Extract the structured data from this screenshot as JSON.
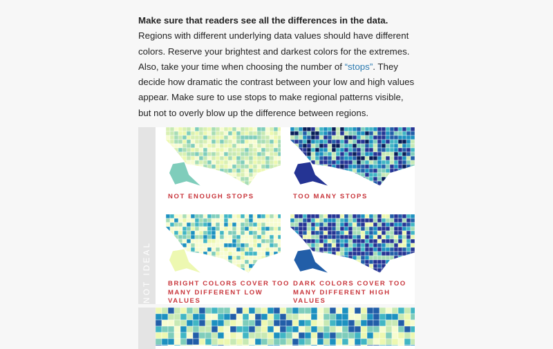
{
  "article": {
    "paragraph": {
      "bold": "Make sure that readers see all the differences in the data.",
      "text_before_link": " Regions with different underlying data values should have different colors. Reserve your brightest and darkest colors for the extremes. Also, take your time when choosing the number of ",
      "link": "“stops”",
      "text_after_link": ". They decide how dramatic the contrast between your low and high values appear. Make sure to use stops to make regional patterns visible, but not to overly blow up the difference between regions."
    },
    "figure": {
      "side_label": "NOT IDEAL",
      "panels": [
        {
          "caption": "NOT ENOUGH STOPS"
        },
        {
          "caption": "TOO MANY STOPS"
        },
        {
          "caption": "BRIGHT COLORS COVER TOO MANY DIFFERENT LOW VALUES"
        },
        {
          "caption": "DARK COLORS COVER TOO MANY DIFFERENT HIGH VALUES"
        }
      ]
    }
  }
}
